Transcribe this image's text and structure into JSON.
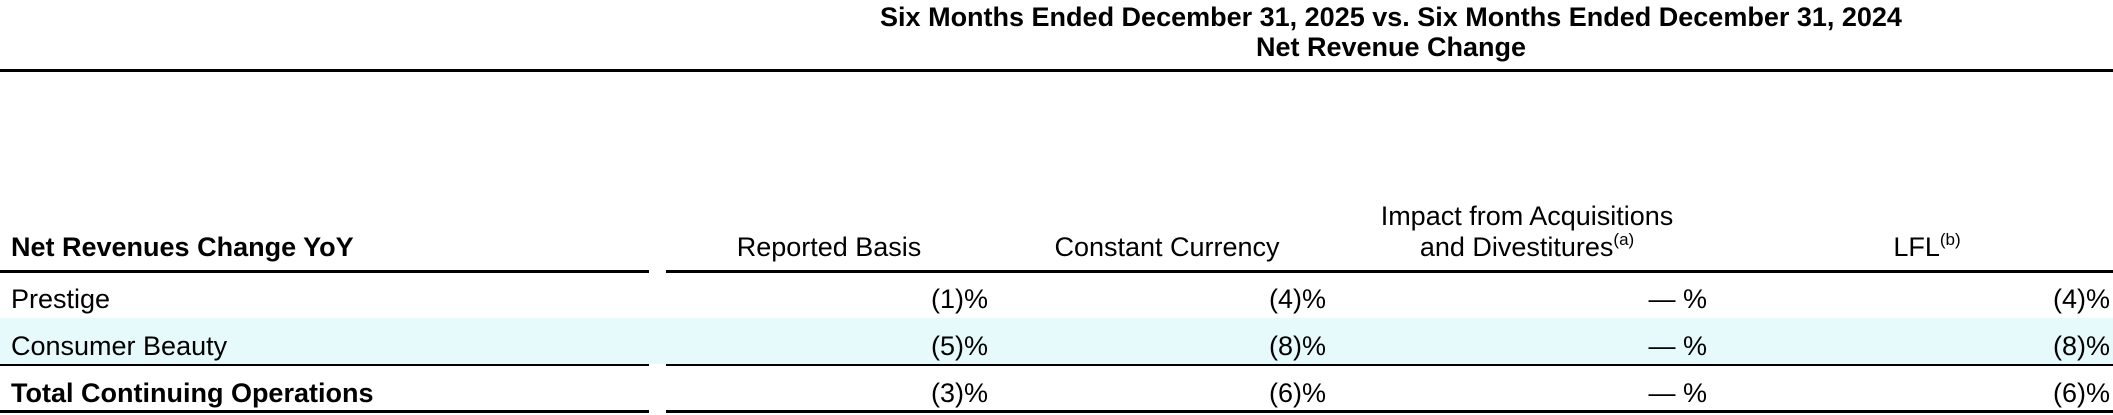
{
  "header": {
    "title": "Six Months Ended December 31, 2025 vs. Six Months Ended December 31, 2024",
    "subtitle": "Net Revenue Change"
  },
  "table": {
    "columns": [
      {
        "lines": [
          "Net Revenues Change YoY"
        ]
      },
      {
        "lines": [
          "Reported Basis"
        ]
      },
      {
        "lines": [
          "Constant Currency"
        ]
      },
      {
        "lines": [
          "Impact from Acquisitions",
          "and Divestitures"
        ],
        "note": "(a)"
      },
      {
        "lines": [
          "LFL"
        ],
        "note": "(b)"
      }
    ],
    "rows": [
      [
        "Prestige",
        "(1)%",
        "(4)%",
        "— %",
        "(4)%"
      ],
      [
        "Consumer Beauty",
        "(5)%",
        "(8)%",
        "— %",
        "(8)%"
      ],
      [
        "Total Continuing Operations",
        "(3)%",
        "(6)%",
        "— %",
        "(6)%"
      ]
    ]
  }
}
